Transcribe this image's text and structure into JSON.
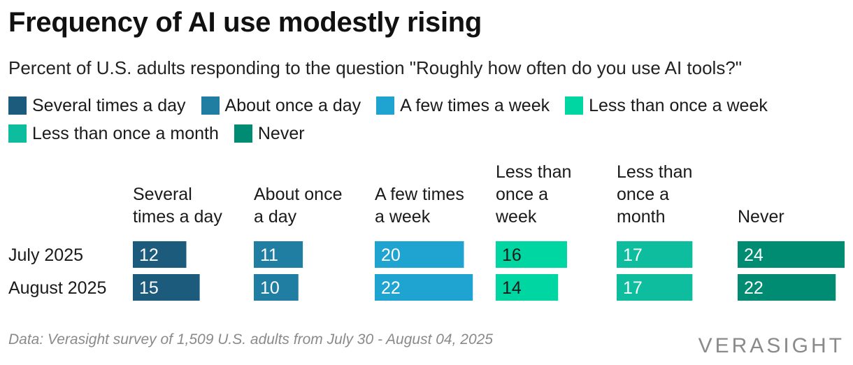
{
  "header": {
    "title": "Frequency of AI use modestly rising",
    "subtitle": "Percent of U.S. adults responding to the question \"Roughly how often do you use AI tools?\""
  },
  "legend": [
    {
      "label": "Several times a day",
      "color": "#1d5b7c"
    },
    {
      "label": "About once a day",
      "color": "#1f7ea1"
    },
    {
      "label": "A few times a week",
      "color": "#1fa3d1"
    },
    {
      "label": "Less than once a week",
      "color": "#00d6a1"
    },
    {
      "label": "Less than once a month",
      "color": "#0ebd9d"
    },
    {
      "label": "Never",
      "color": "#008c73"
    }
  ],
  "chart_data": {
    "type": "bar",
    "layout": "small-multiples-horizontal",
    "categories": [
      "July 2025",
      "August 2025"
    ],
    "series": [
      {
        "name": "Several times a day",
        "header_lines": [
          "Several",
          "times a day"
        ],
        "values": [
          12,
          15
        ],
        "color": "#1d5b7c"
      },
      {
        "name": "About once a day",
        "header_lines": [
          "About once",
          "a day"
        ],
        "values": [
          11,
          10
        ],
        "color": "#1f7ea1"
      },
      {
        "name": "A few times a week",
        "header_lines": [
          "A few times",
          "a week"
        ],
        "values": [
          20,
          22
        ],
        "color": "#1fa3d1"
      },
      {
        "name": "Less than once a week",
        "header_lines": [
          "Less than",
          "once a",
          "week"
        ],
        "values": [
          16,
          14
        ],
        "color": "#00d6a1"
      },
      {
        "name": "Less than once a month",
        "header_lines": [
          "Less than",
          "once a",
          "month"
        ],
        "values": [
          17,
          17
        ],
        "color": "#0ebd9d"
      },
      {
        "name": "Never",
        "header_lines": [
          "Never"
        ],
        "values": [
          24,
          22
        ],
        "color": "#008c73"
      }
    ],
    "xlim": [
      0,
      24
    ],
    "value_labels": true
  },
  "footer": {
    "source": "Data: Verasight survey of 1,509 U.S. adults from July 30 - August 04, 2025",
    "logo": "VERASIGHT"
  }
}
